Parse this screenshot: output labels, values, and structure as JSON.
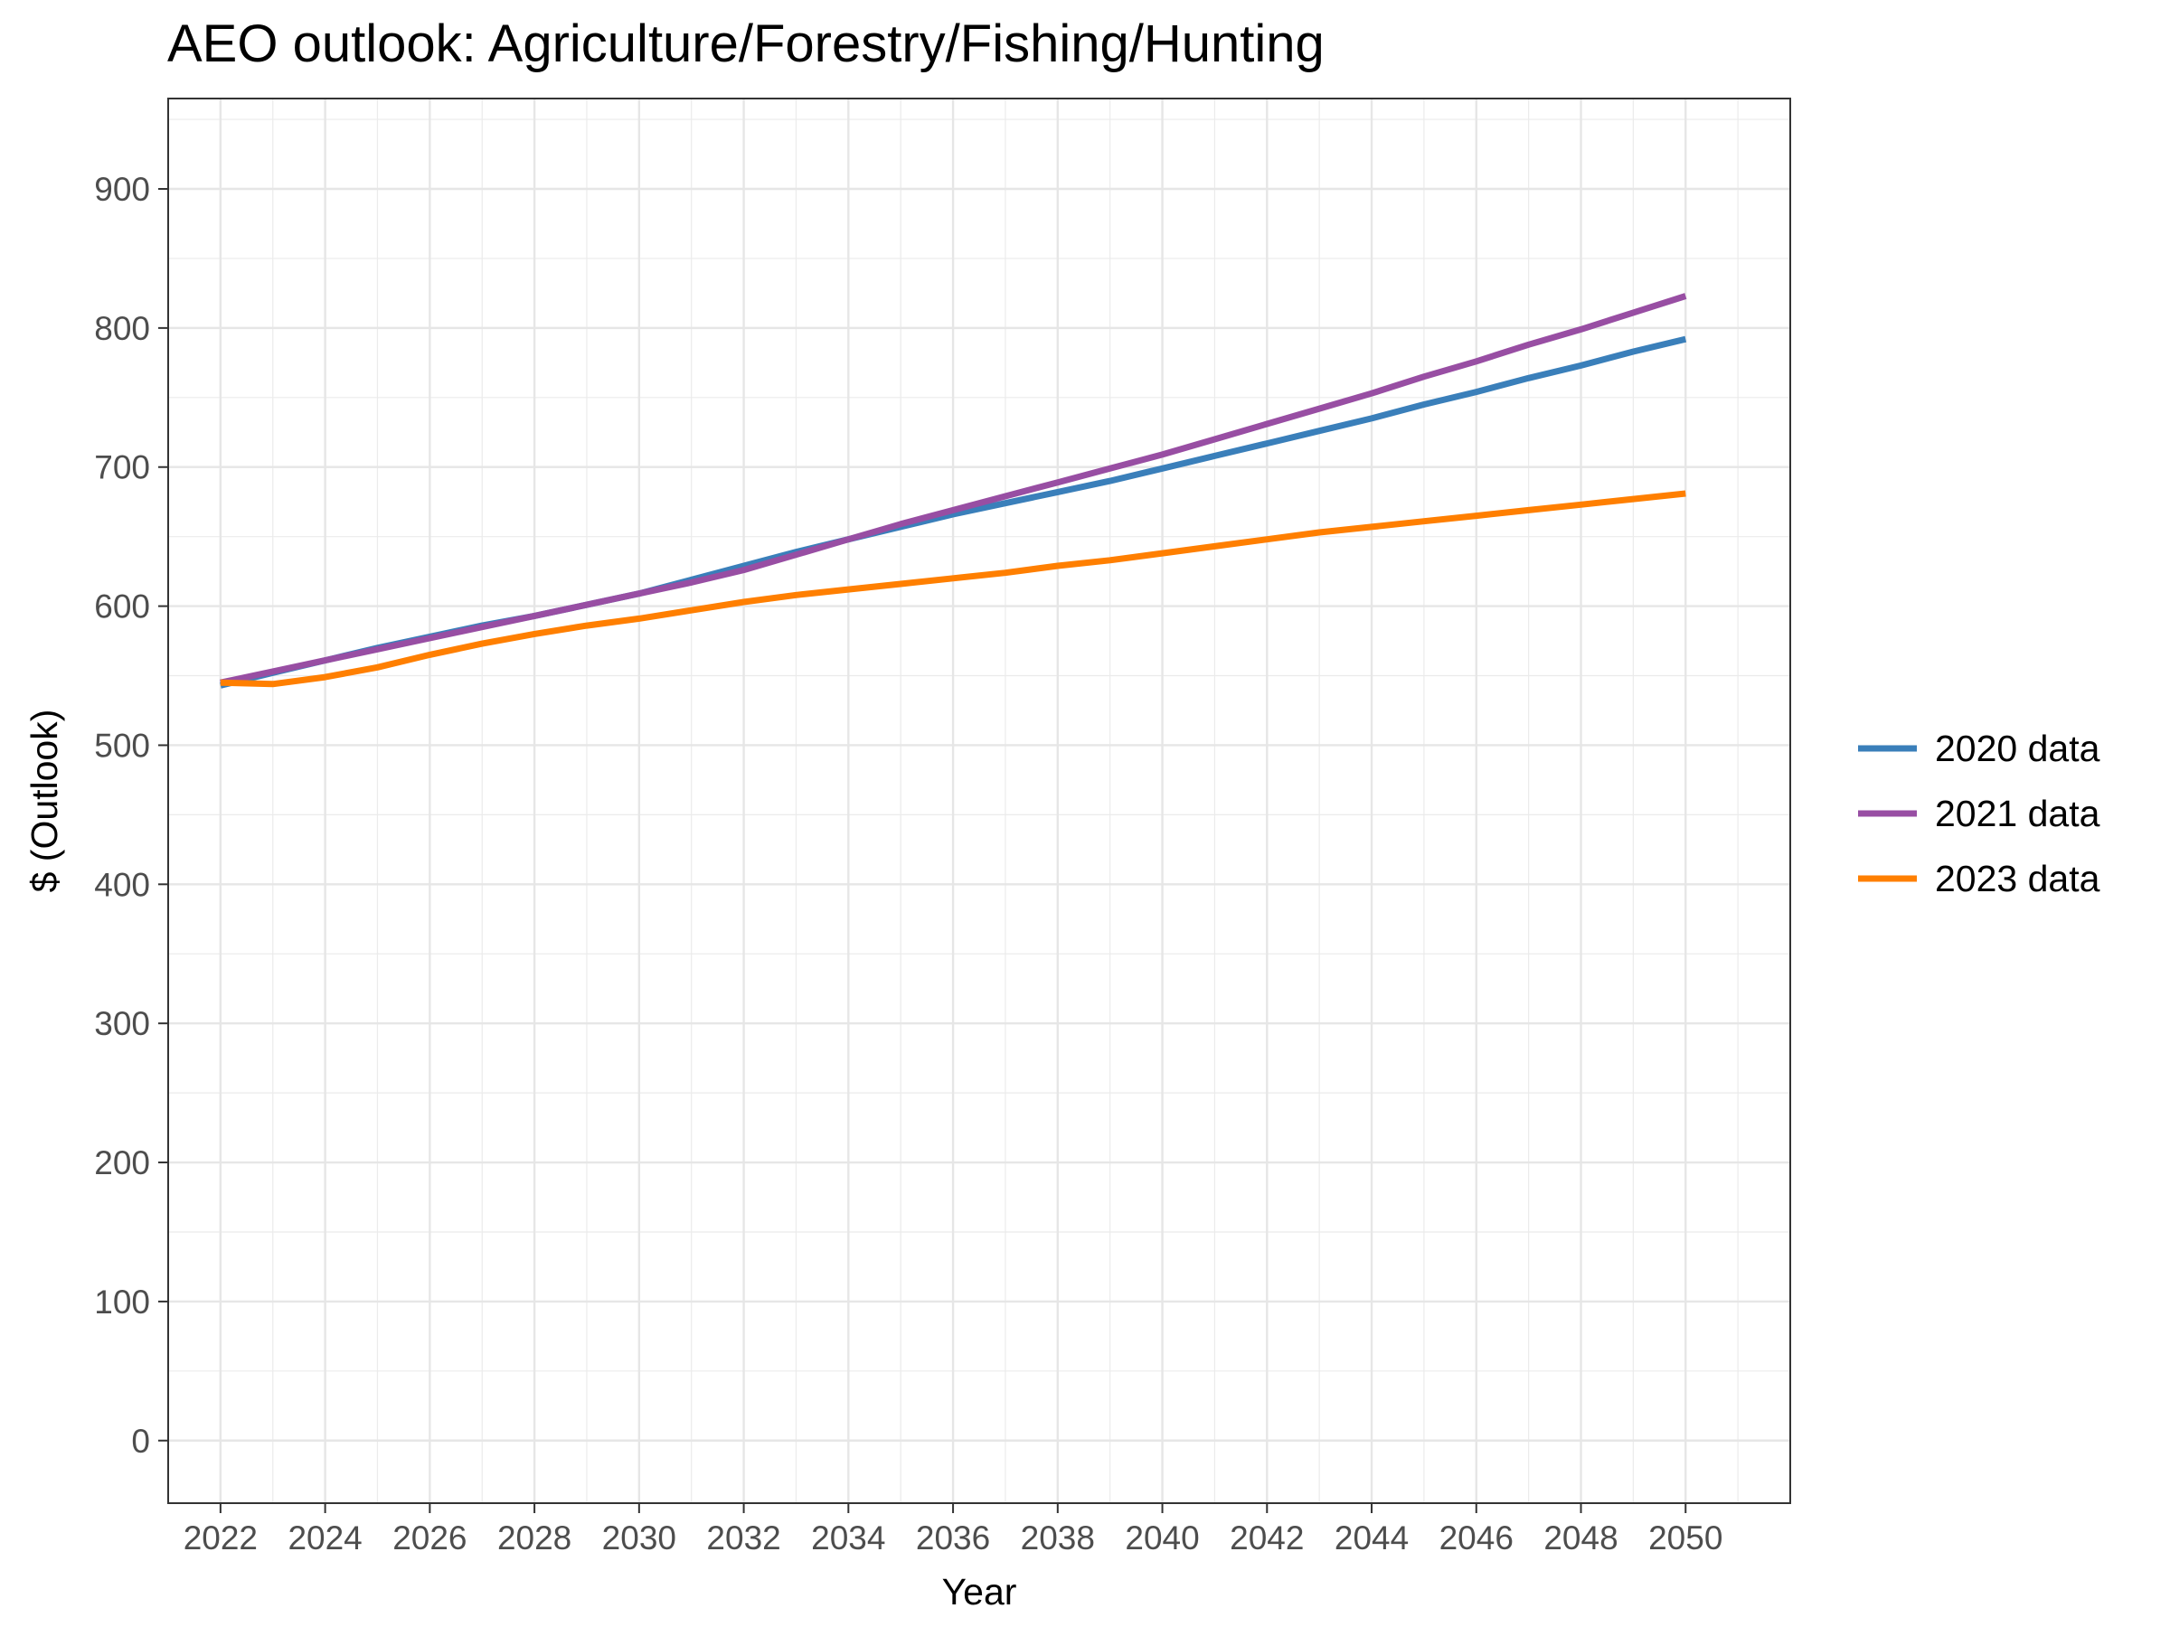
{
  "chart_data": {
    "type": "line",
    "title": "AEO outlook: Agriculture/Forestry/Fishing/Hunting",
    "xlabel": "Year",
    "ylabel": "$ (Outlook)",
    "xlim": [
      2021,
      2052
    ],
    "ylim": [
      -45,
      965
    ],
    "x_ticks": [
      "2022",
      "2024",
      "2026",
      "2028",
      "2030",
      "2032",
      "2034",
      "2036",
      "2038",
      "2040",
      "2042",
      "2044",
      "2046",
      "2048",
      "2050"
    ],
    "y_ticks": [
      "0",
      "100",
      "200",
      "300",
      "400",
      "500",
      "600",
      "700",
      "800",
      "900"
    ],
    "grid": true,
    "legend_position": "right",
    "x": [
      2022,
      2023,
      2024,
      2025,
      2026,
      2027,
      2028,
      2029,
      2030,
      2031,
      2032,
      2033,
      2034,
      2035,
      2036,
      2037,
      2038,
      2039,
      2040,
      2041,
      2042,
      2043,
      2044,
      2045,
      2046,
      2047,
      2048,
      2049,
      2050
    ],
    "series": [
      {
        "name": "2020 data",
        "color": "#3a7fba",
        "values": [
          543,
          552,
          561,
          570,
          578,
          586,
          593,
          601,
          609,
          619,
          629,
          639,
          648,
          657,
          666,
          674,
          682,
          690,
          699,
          708,
          717,
          726,
          735,
          745,
          754,
          764,
          773,
          783,
          792
        ]
      },
      {
        "name": "2021 data",
        "color": "#984ea3",
        "values": [
          545,
          553,
          561,
          569,
          577,
          585,
          593,
          601,
          609,
          617,
          626,
          637,
          648,
          659,
          669,
          679,
          689,
          699,
          709,
          720,
          731,
          742,
          753,
          765,
          776,
          788,
          799,
          811,
          823
        ]
      },
      {
        "name": "2023 data",
        "color": "#ff7f00",
        "values": [
          545,
          544,
          549,
          556,
          565,
          573,
          580,
          586,
          591,
          597,
          603,
          608,
          612,
          616,
          620,
          624,
          629,
          633,
          638,
          643,
          648,
          653,
          657,
          661,
          665,
          669,
          673,
          677,
          681
        ]
      }
    ]
  }
}
